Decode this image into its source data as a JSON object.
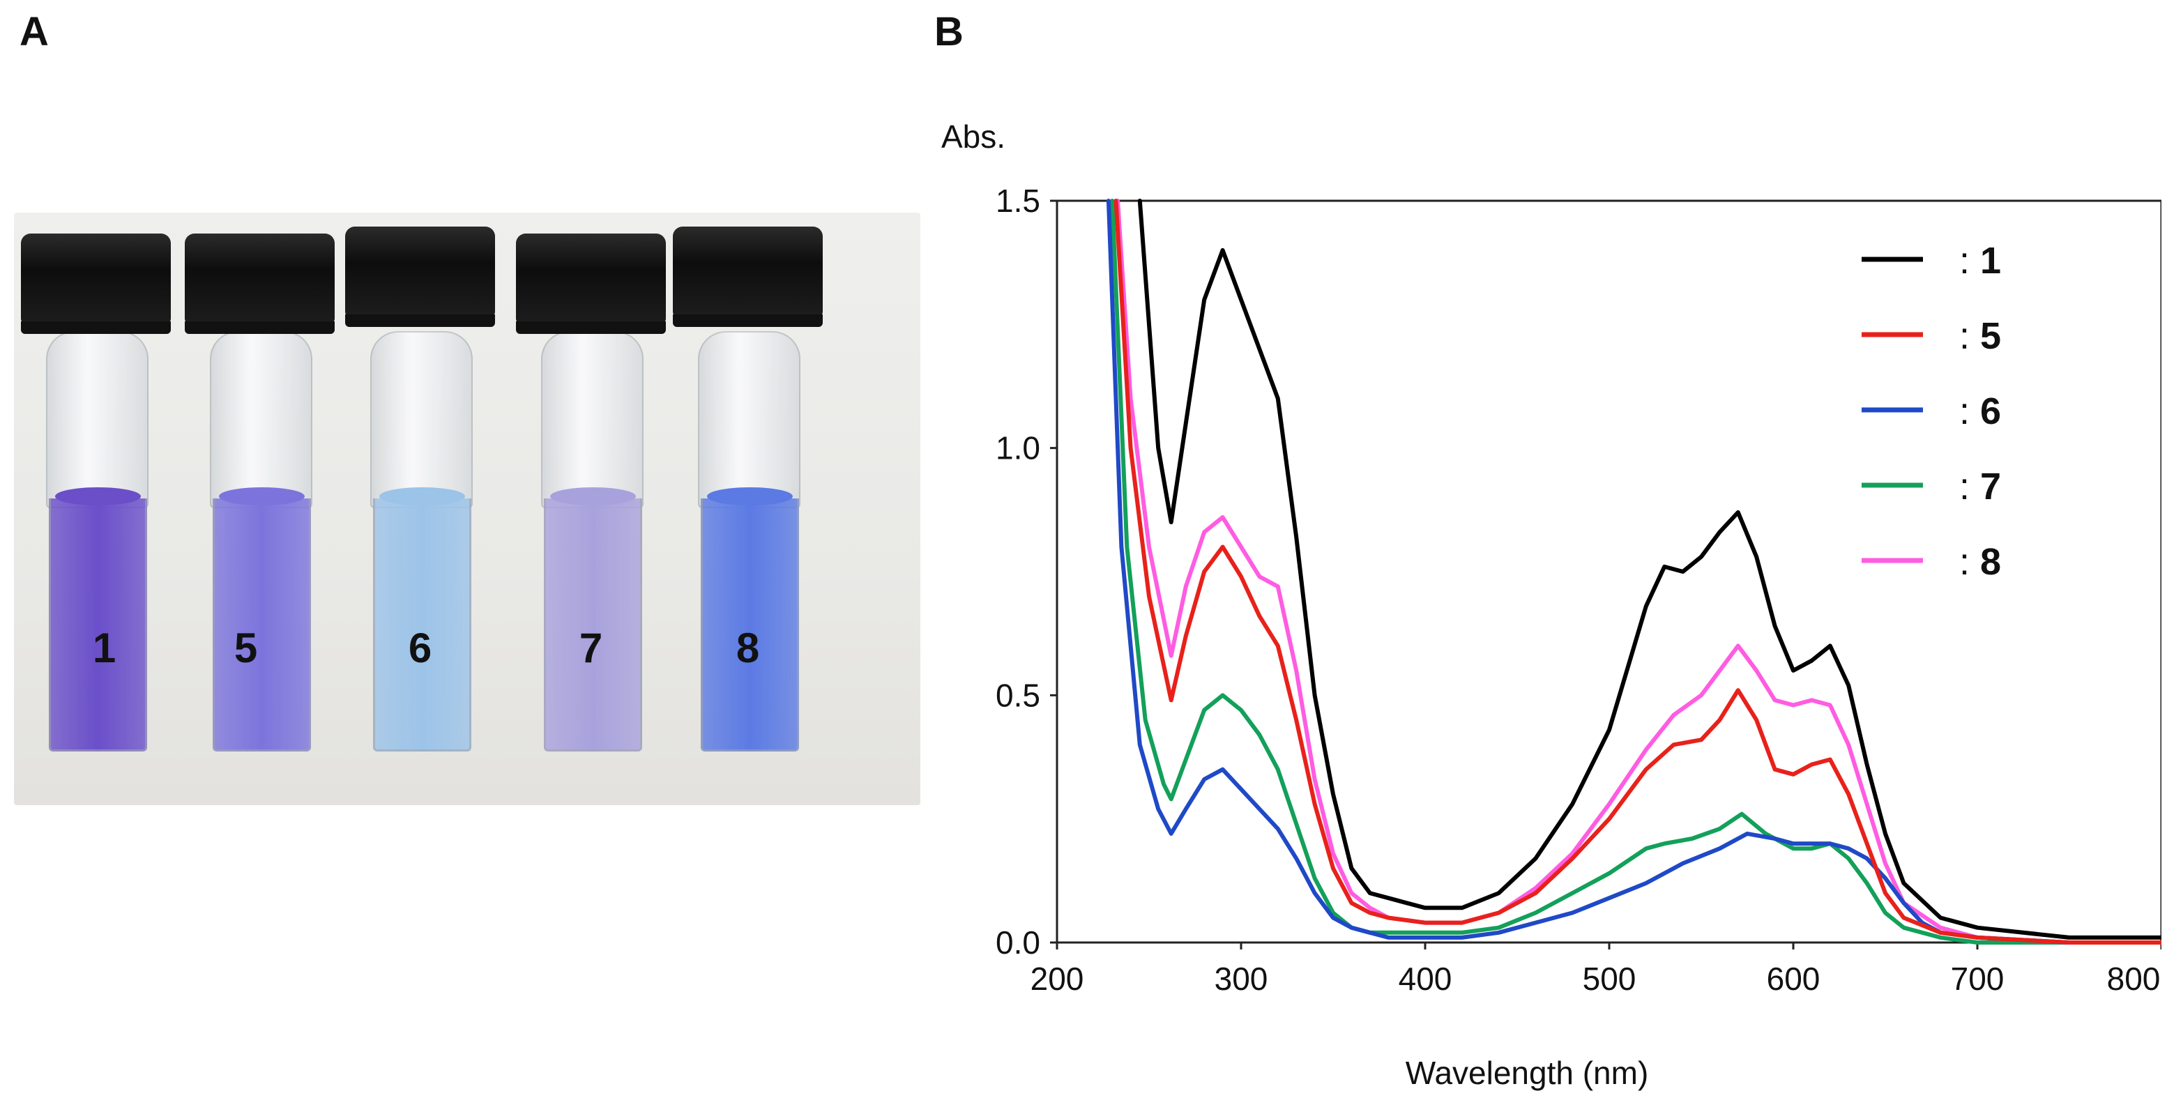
{
  "panels": {
    "a": "A",
    "b": "B"
  },
  "photo": {
    "vials": [
      {
        "label": "1",
        "color": "#6a4fc9"
      },
      {
        "label": "5",
        "color": "#7c74dc"
      },
      {
        "label": "6",
        "color": "#9cc3e8"
      },
      {
        "label": "7",
        "color": "#a8a2dc"
      },
      {
        "label": "8",
        "color": "#5b7ae3"
      }
    ]
  },
  "chart_data": {
    "type": "line",
    "ylabel": "Abs.",
    "xlabel": "Wavelength (nm)",
    "xlim": [
      200,
      800
    ],
    "ylim": [
      0,
      1.5
    ],
    "xticks": [
      200,
      300,
      400,
      500,
      600,
      700,
      800
    ],
    "xtick_labels": [
      "200",
      "300",
      "400",
      "500",
      "600",
      "700",
      "800"
    ],
    "yticks": [
      0,
      0.5,
      1.0,
      1.5
    ],
    "ytick_labels": [
      "0.0",
      "0.5",
      "1.0",
      "1.5"
    ],
    "legend_position": "top-right",
    "legend_separator": ":",
    "series": [
      {
        "name": "1",
        "color": "#000000",
        "x": [
          245,
          250,
          255,
          262,
          270,
          280,
          290,
          300,
          310,
          320,
          330,
          340,
          350,
          360,
          370,
          380,
          390,
          400,
          420,
          440,
          460,
          480,
          500,
          520,
          530,
          540,
          550,
          560,
          570,
          580,
          590,
          600,
          610,
          620,
          630,
          640,
          650,
          660,
          680,
          700,
          750,
          800
        ],
        "y": [
          1.5,
          1.25,
          1.0,
          0.85,
          1.05,
          1.3,
          1.4,
          1.3,
          1.2,
          1.1,
          0.82,
          0.5,
          0.3,
          0.15,
          0.1,
          0.09,
          0.08,
          0.07,
          0.07,
          0.1,
          0.17,
          0.28,
          0.43,
          0.68,
          0.76,
          0.75,
          0.78,
          0.83,
          0.87,
          0.78,
          0.64,
          0.55,
          0.57,
          0.6,
          0.52,
          0.36,
          0.22,
          0.12,
          0.05,
          0.03,
          0.01,
          0.01
        ]
      },
      {
        "name": "5",
        "color": "#e8211b",
        "x": [
          232,
          240,
          250,
          262,
          270,
          280,
          290,
          300,
          310,
          320,
          330,
          340,
          350,
          360,
          370,
          380,
          400,
          420,
          440,
          460,
          480,
          500,
          520,
          535,
          550,
          560,
          570,
          580,
          590,
          600,
          610,
          620,
          630,
          640,
          650,
          660,
          680,
          700,
          750,
          800
        ],
        "y": [
          1.5,
          1.0,
          0.7,
          0.49,
          0.62,
          0.75,
          0.8,
          0.74,
          0.66,
          0.6,
          0.45,
          0.28,
          0.15,
          0.08,
          0.06,
          0.05,
          0.04,
          0.04,
          0.06,
          0.1,
          0.17,
          0.25,
          0.35,
          0.4,
          0.41,
          0.45,
          0.51,
          0.45,
          0.35,
          0.34,
          0.36,
          0.37,
          0.3,
          0.2,
          0.1,
          0.05,
          0.02,
          0.01,
          0.0,
          0.0
        ]
      },
      {
        "name": "6",
        "color": "#1f49c7",
        "x": [
          228,
          235,
          245,
          255,
          262,
          270,
          280,
          290,
          300,
          310,
          320,
          330,
          340,
          350,
          360,
          370,
          380,
          400,
          420,
          440,
          460,
          480,
          500,
          520,
          540,
          560,
          575,
          590,
          600,
          610,
          620,
          630,
          640,
          650,
          660,
          670,
          680,
          700,
          750,
          800
        ],
        "y": [
          1.5,
          0.8,
          0.4,
          0.27,
          0.22,
          0.27,
          0.33,
          0.35,
          0.31,
          0.27,
          0.23,
          0.17,
          0.1,
          0.05,
          0.03,
          0.02,
          0.01,
          0.01,
          0.01,
          0.02,
          0.04,
          0.06,
          0.09,
          0.12,
          0.16,
          0.19,
          0.22,
          0.21,
          0.2,
          0.2,
          0.2,
          0.19,
          0.17,
          0.13,
          0.08,
          0.04,
          0.02,
          0.01,
          0.0,
          0.0
        ]
      },
      {
        "name": "7",
        "color": "#13a05a",
        "x": [
          230,
          238,
          248,
          258,
          262,
          270,
          280,
          290,
          300,
          310,
          320,
          330,
          340,
          350,
          360,
          370,
          380,
          400,
          420,
          440,
          460,
          480,
          500,
          520,
          530,
          545,
          560,
          572,
          585,
          600,
          610,
          620,
          630,
          640,
          650,
          660,
          680,
          700,
          750,
          800
        ],
        "y": [
          1.5,
          0.8,
          0.45,
          0.32,
          0.29,
          0.37,
          0.47,
          0.5,
          0.47,
          0.42,
          0.35,
          0.24,
          0.13,
          0.06,
          0.03,
          0.02,
          0.02,
          0.02,
          0.02,
          0.03,
          0.06,
          0.1,
          0.14,
          0.19,
          0.2,
          0.21,
          0.23,
          0.26,
          0.22,
          0.19,
          0.19,
          0.2,
          0.17,
          0.12,
          0.06,
          0.03,
          0.01,
          0.0,
          0.0,
          0.0
        ]
      },
      {
        "name": "8",
        "color": "#ff5ce2",
        "x": [
          233,
          240,
          250,
          262,
          270,
          280,
          290,
          300,
          310,
          320,
          330,
          340,
          350,
          360,
          370,
          380,
          400,
          420,
          440,
          460,
          480,
          500,
          520,
          535,
          550,
          560,
          570,
          580,
          590,
          600,
          610,
          620,
          630,
          640,
          650,
          660,
          680,
          700,
          750,
          800
        ],
        "y": [
          1.5,
          1.1,
          0.8,
          0.58,
          0.72,
          0.83,
          0.86,
          0.8,
          0.74,
          0.72,
          0.55,
          0.33,
          0.18,
          0.1,
          0.07,
          0.05,
          0.04,
          0.04,
          0.06,
          0.11,
          0.18,
          0.28,
          0.39,
          0.46,
          0.5,
          0.55,
          0.6,
          0.55,
          0.49,
          0.48,
          0.49,
          0.48,
          0.4,
          0.28,
          0.16,
          0.08,
          0.03,
          0.01,
          0.0,
          0.0
        ]
      }
    ]
  }
}
